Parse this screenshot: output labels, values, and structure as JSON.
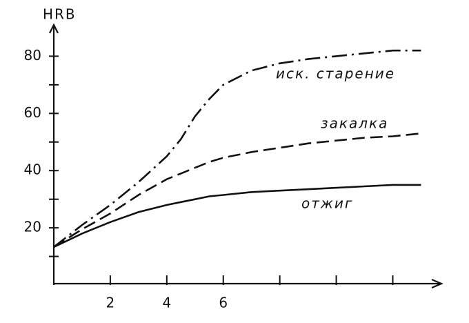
{
  "chart_data": {
    "type": "line",
    "y_label": "HRB",
    "x": [
      0,
      1,
      2,
      3,
      4,
      4.5,
      5,
      5.5,
      6,
      7,
      8,
      9,
      10,
      11,
      12,
      13
    ],
    "series": [
      {
        "name": "иск. старение",
        "color": "#111111",
        "dash": "dashdot",
        "values": [
          13.3,
          21,
          28,
          36,
          45,
          51,
          59,
          65,
          70,
          75,
          77.5,
          79,
          80,
          81,
          82,
          82
        ]
      },
      {
        "name": "закалка",
        "color": "#111111",
        "dash": "dashed",
        "values": [
          13.3,
          19.5,
          25,
          31.5,
          37,
          39,
          41,
          43,
          44.5,
          46.5,
          48,
          49.5,
          50.5,
          51.5,
          52,
          53
        ]
      },
      {
        "name": "отжиг",
        "color": "#111111",
        "dash": "solid",
        "values": [
          13.3,
          18,
          22,
          25.5,
          28,
          29,
          30,
          31,
          31.5,
          32.5,
          33,
          33.5,
          34,
          34.5,
          35,
          35
        ]
      }
    ],
    "xlim": [
      0,
      13.6
    ],
    "ylim": [
      0,
      90
    ],
    "xticks": [
      2,
      4,
      6
    ],
    "yticks": [
      20,
      40,
      60,
      80
    ],
    "xminorticks": [
      8,
      10,
      12
    ],
    "yminorticks": [
      10,
      30,
      50,
      70
    ]
  }
}
